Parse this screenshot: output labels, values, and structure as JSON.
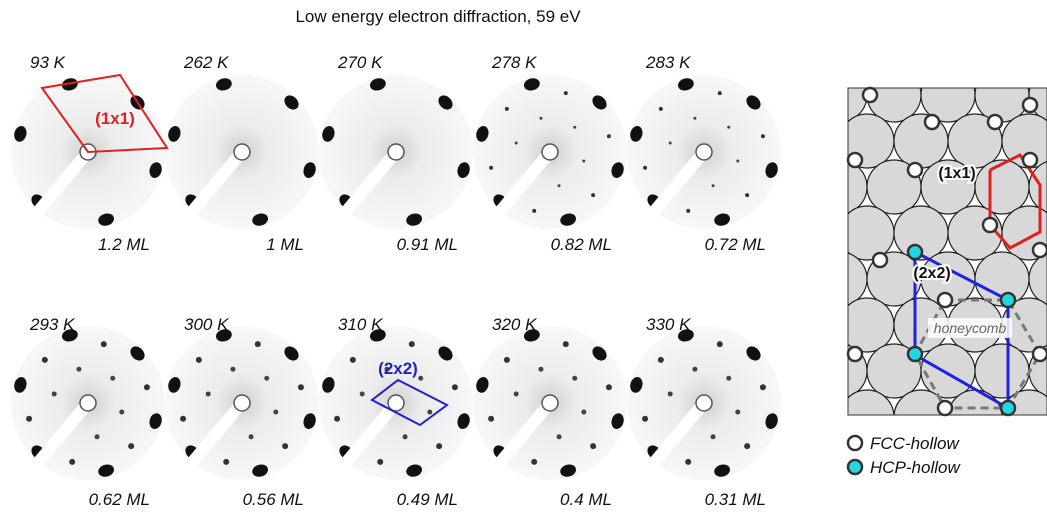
{
  "title": "Low energy electron diffraction, 59 eV",
  "panels": [
    {
      "temperature": "93 K",
      "coverage": "1.2 ML"
    },
    {
      "temperature": "262 K",
      "coverage": "1 ML"
    },
    {
      "temperature": "270 K",
      "coverage": "0.91 ML"
    },
    {
      "temperature": "278 K",
      "coverage": "0.82 ML"
    },
    {
      "temperature": "283 K",
      "coverage": "0.72 ML"
    },
    {
      "temperature": "293 K",
      "coverage": "0.62 ML"
    },
    {
      "temperature": "300 K",
      "coverage": "0.56 ML"
    },
    {
      "temperature": "310 K",
      "coverage": "0.49 ML"
    },
    {
      "temperature": "320 K",
      "coverage": "0.4 ML"
    },
    {
      "temperature": "330 K",
      "coverage": "0.31 ML"
    }
  ],
  "leed_annotations": [
    "(1x1)",
    "(2x2)"
  ],
  "model": {
    "labels": [
      "(1x1)",
      "(2x2)",
      "honeycomb"
    ],
    "legend": [
      "FCC-hollow",
      "HCP-hollow"
    ]
  }
}
